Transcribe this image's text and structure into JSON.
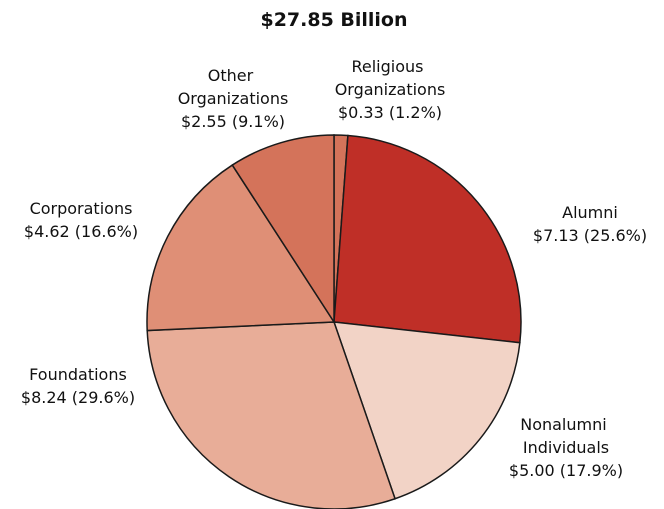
{
  "chart_data": {
    "type": "pie",
    "title": "$27.85 Billion",
    "categories": [
      "Religious Organizations",
      "Alumni",
      "Nonalumni Individuals",
      "Foundations",
      "Corporations",
      "Other Organizations"
    ],
    "values": [
      0.33,
      7.13,
      5.0,
      8.24,
      4.62,
      2.55
    ],
    "value_labels": [
      "$0.33 (1.2%)",
      "$7.13 (25.6%)",
      "$5.00 (17.9%)",
      "$8.24 (29.6%)",
      "$4.62 (16.6%)",
      "$2.55 (9.1%)"
    ],
    "colors": [
      "#d4735a",
      "#bf2f27",
      "#f2d3c6",
      "#e8ad98",
      "#df8f76",
      "#d4735a"
    ]
  }
}
